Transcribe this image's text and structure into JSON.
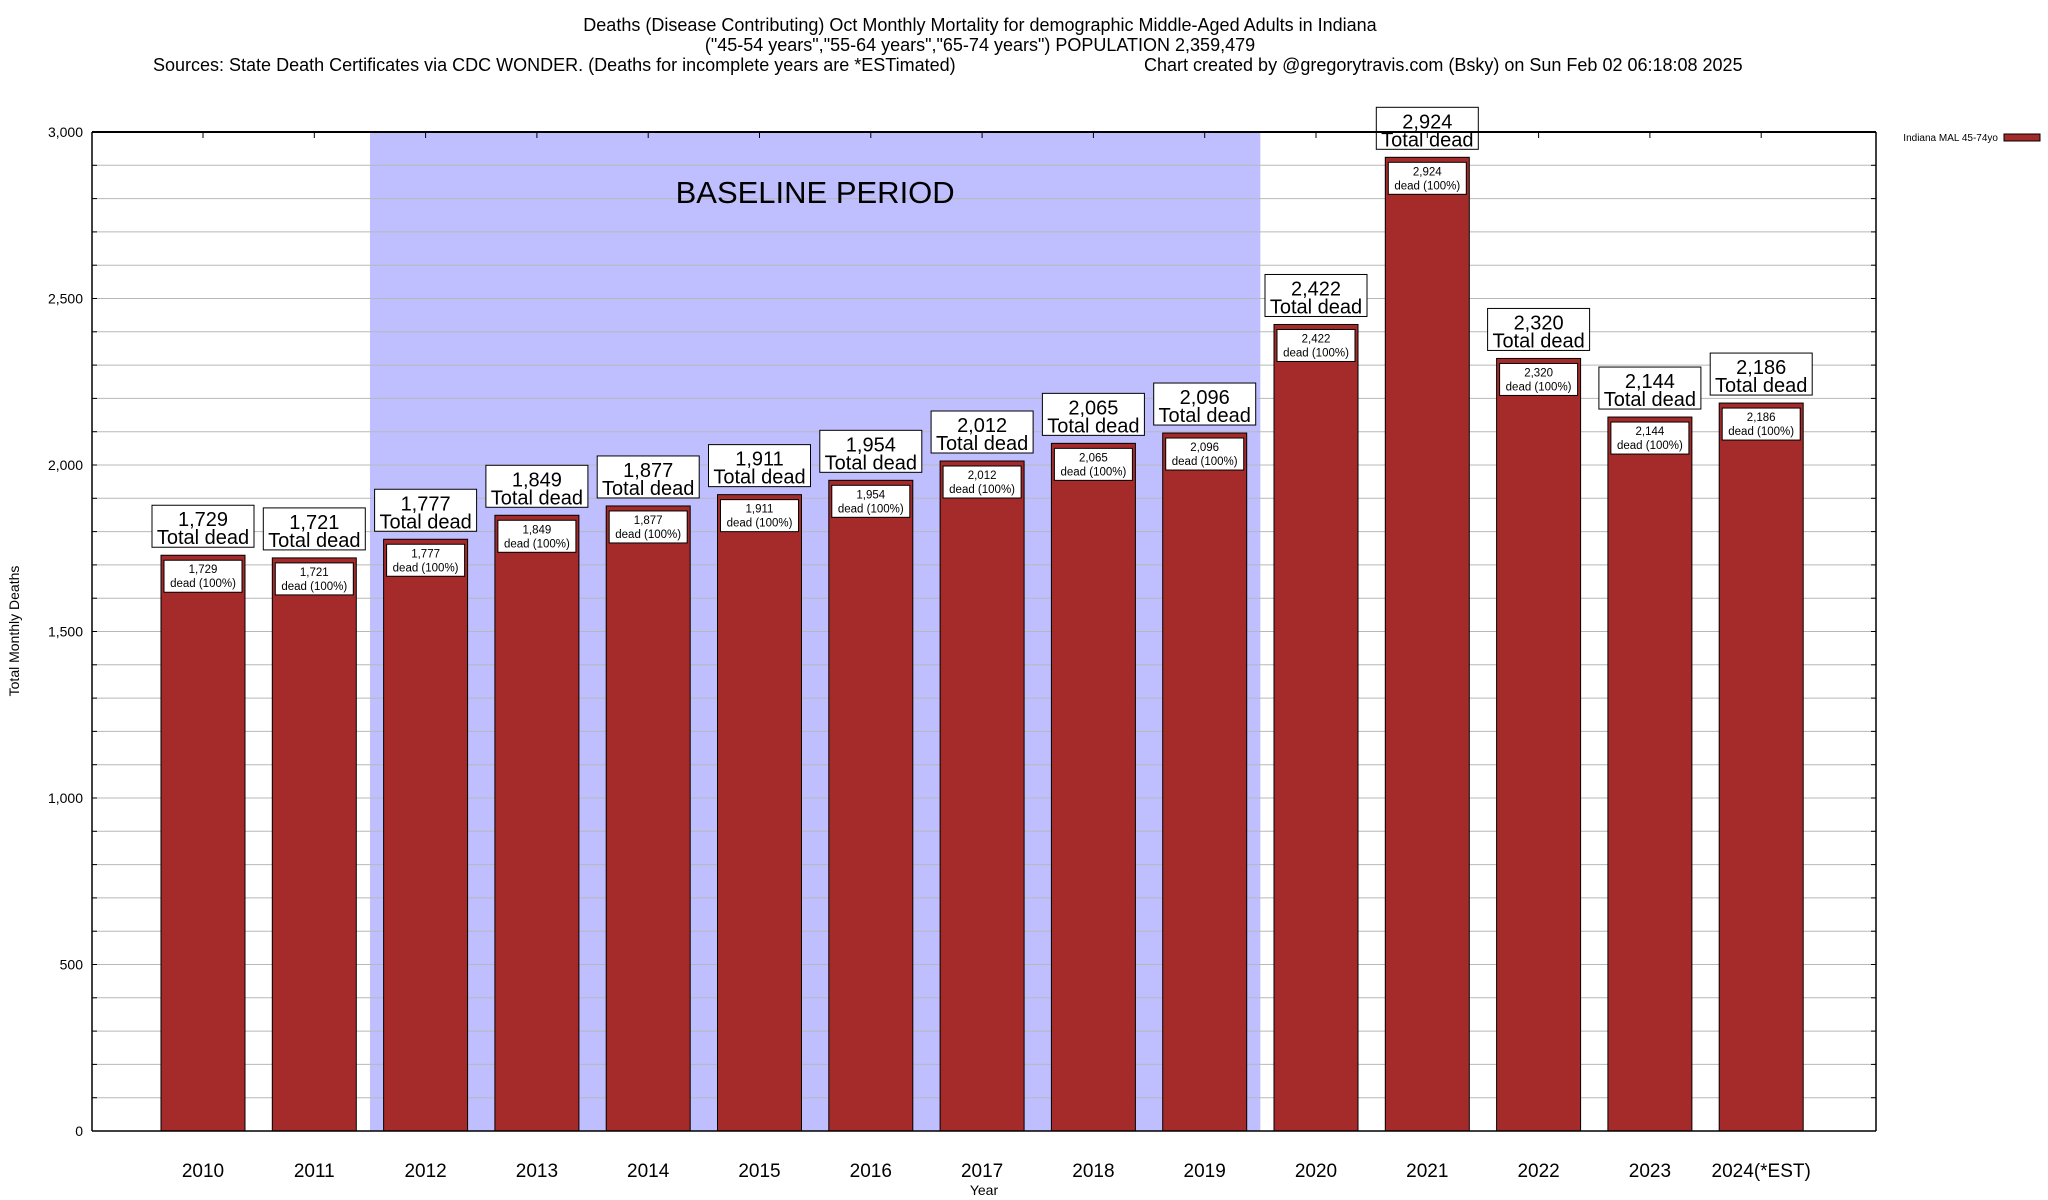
{
  "chart_data": {
    "type": "bar",
    "title": "Deaths (Disease Contributing) Oct Monthly Mortality for demographic Middle-Aged Adults in Indiana",
    "subtitle": "(\"45-54 years\",\"55-64 years\",\"65-74 years\") POPULATION 2,359,479",
    "source": "Sources: State Death Certificates via CDC WONDER. (Deaths for incomplete years are *ESTimated)",
    "credit": "Chart created by @gregorytravis.com (Bsky) on Sun Feb 02 06:18:08 2025",
    "xlabel": "Year",
    "ylabel": "Total Monthly Deaths",
    "ylim": [
      0,
      3000
    ],
    "yticks": [
      0,
      500,
      1000,
      1500,
      2000,
      2500,
      3000
    ],
    "ytick_labels": [
      "0",
      "500",
      "1,000",
      "1,500",
      "2,000",
      "2,500",
      "3,000"
    ],
    "grid": true,
    "grid_step": 100,
    "legend_position": "top-right",
    "categories": [
      "2010",
      "2011",
      "2012",
      "2013",
      "2014",
      "2015",
      "2016",
      "2017",
      "2018",
      "2019",
      "2020",
      "2021",
      "2022",
      "2023",
      "2024(*EST)"
    ],
    "series": [
      {
        "name": "Indiana MAL 45-74yo",
        "color": "#a52a2a",
        "values": [
          1729,
          1721,
          1777,
          1849,
          1877,
          1911,
          1954,
          2012,
          2065,
          2096,
          2422,
          2924,
          2320,
          2144,
          2186
        ]
      }
    ],
    "value_labels": [
      "1,729",
      "1,721",
      "1,777",
      "1,849",
      "1,877",
      "1,911",
      "1,954",
      "2,012",
      "2,065",
      "2,096",
      "2,422",
      "2,924",
      "2,320",
      "2,144",
      "2,186"
    ],
    "top_label_suffix": "Total dead",
    "inner_label_suffix": "dead (100%)",
    "annotation": {
      "text": "BASELINE PERIOD",
      "from": "2012",
      "to": "2019",
      "color": "#bfbfff"
    }
  }
}
